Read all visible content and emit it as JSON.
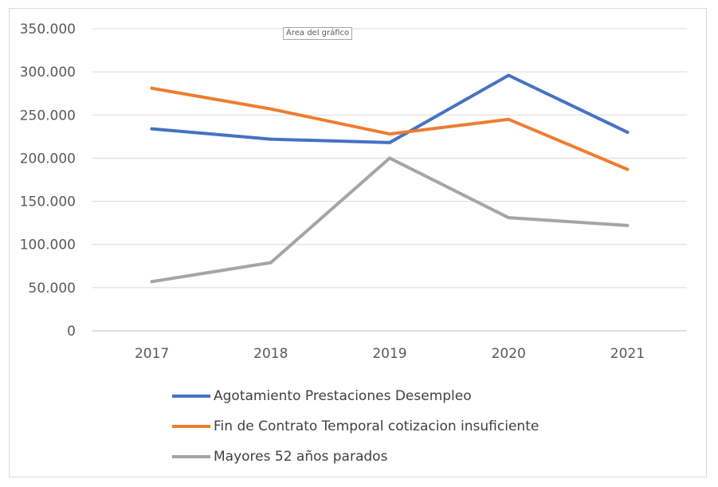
{
  "tooltip": "Área del gráfico",
  "chart_data": {
    "type": "line",
    "title": "",
    "xlabel": "",
    "ylabel": "",
    "categories": [
      "2017",
      "2018",
      "2019",
      "2020",
      "2021"
    ],
    "ylim": [
      0,
      350000
    ],
    "yticks": [
      {
        "value": 0,
        "label": "0"
      },
      {
        "value": 50000,
        "label": "50.000"
      },
      {
        "value": 100000,
        "label": "100.000"
      },
      {
        "value": 150000,
        "label": "150.000"
      },
      {
        "value": 200000,
        "label": "200.000"
      },
      {
        "value": 250000,
        "label": "250.000"
      },
      {
        "value": 300000,
        "label": "300.000"
      },
      {
        "value": 350000,
        "label": "350.000"
      }
    ],
    "grid": true,
    "legend_position": "bottom",
    "series": [
      {
        "name": "Agotamiento Prestaciones Desempleo",
        "color": "#4472c4",
        "values": [
          234000,
          222000,
          218000,
          296000,
          230000
        ]
      },
      {
        "name": "Fin de Contrato Temporal cotizacion insuficiente",
        "color": "#ed7d31",
        "values": [
          281000,
          257000,
          228000,
          245000,
          187000
        ]
      },
      {
        "name": "Mayores 52 años parados",
        "color": "#a5a5a5",
        "values": [
          57000,
          79000,
          200000,
          131000,
          122000
        ]
      }
    ]
  }
}
